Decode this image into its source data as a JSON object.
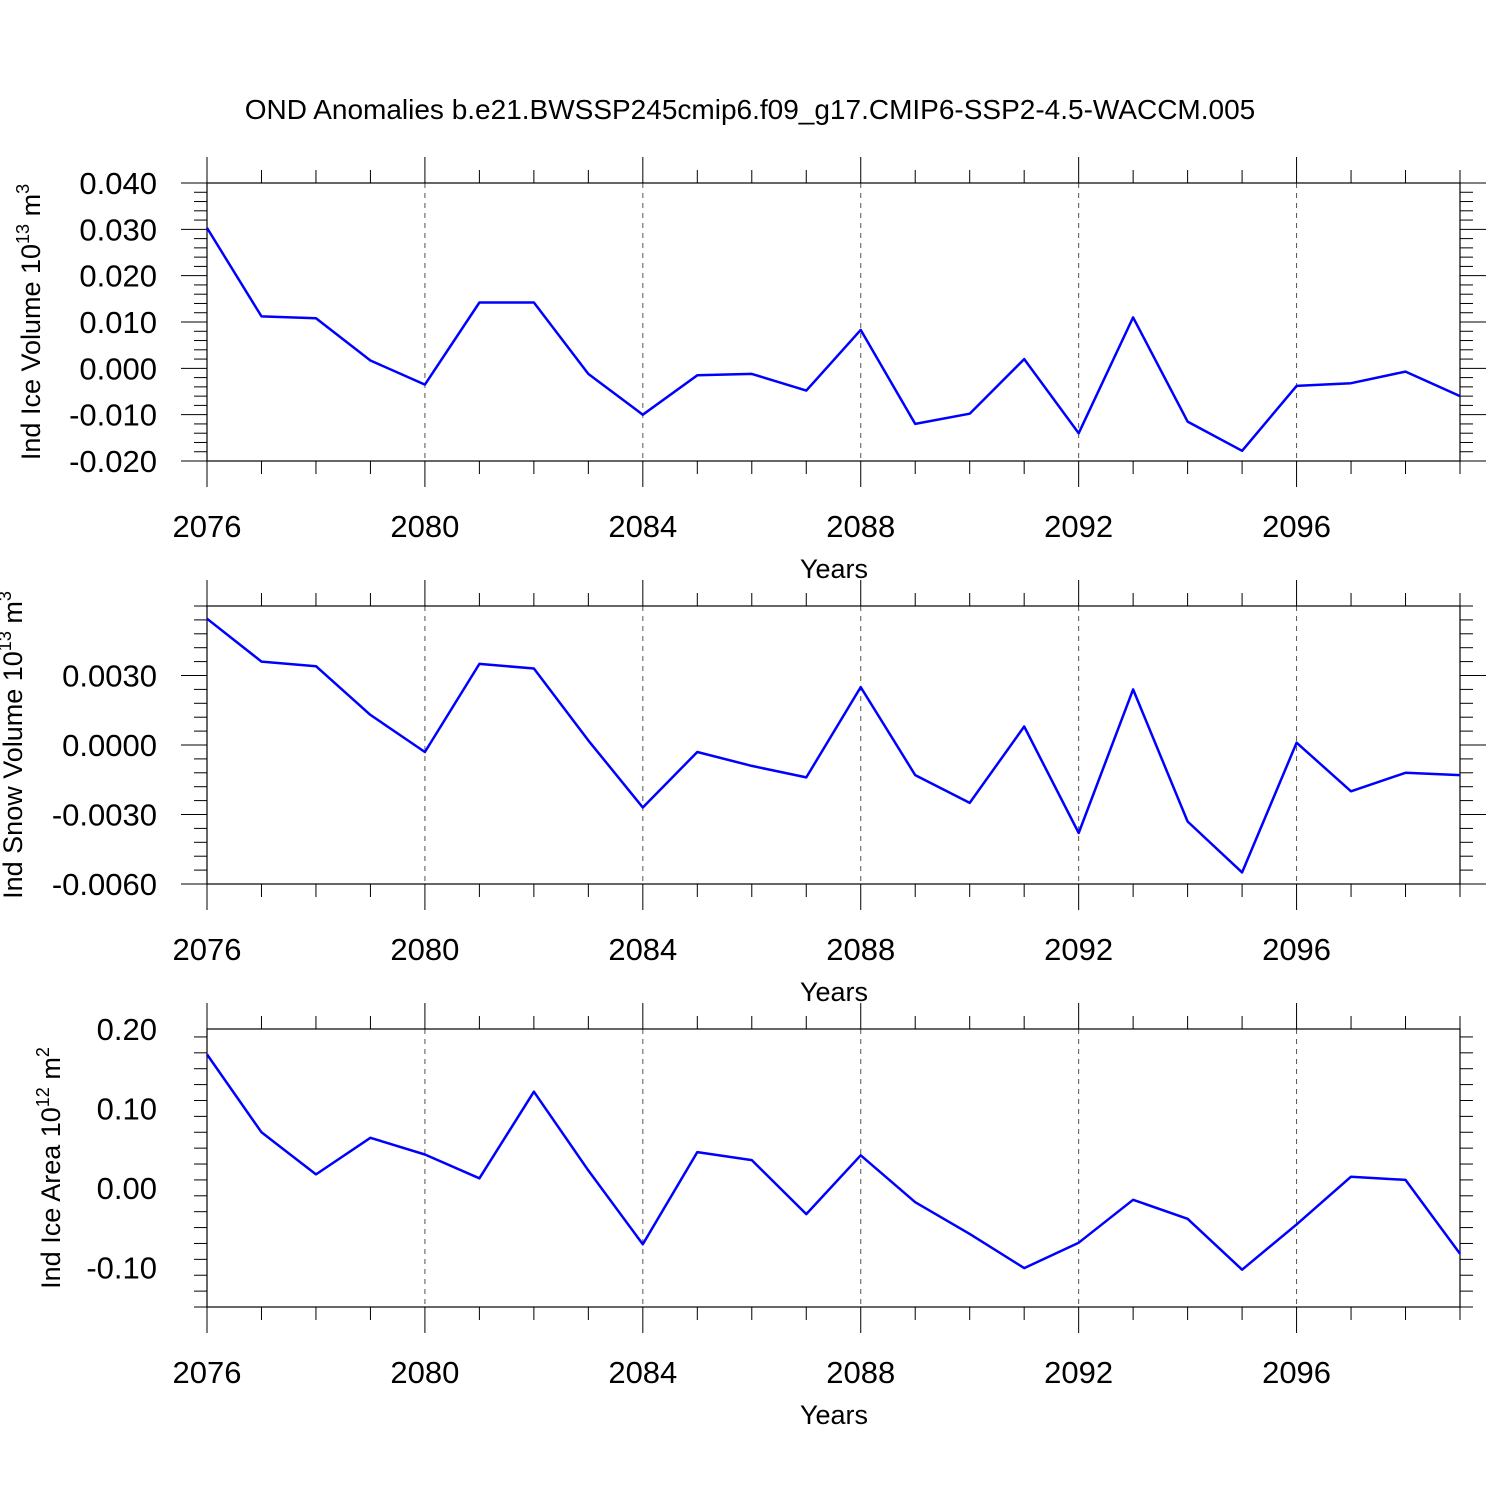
{
  "figure": {
    "title": "OND Anomalies b.e21.BWSSP245cmip6.f09_g17.CMIP6-SSP2-4.5-WACCM.005",
    "line_color": "#0000ff"
  },
  "chart_data": [
    {
      "type": "line",
      "ylabel": "Ind Ice Volume 10",
      "ylabel_exp": "13",
      "ylabel_unit": " m",
      "ylabel_unit_exp": "3",
      "xlabel": "Years",
      "xlim": [
        2076,
        2099
      ],
      "ylim": [
        -0.02,
        0.04
      ],
      "yticks": [
        -0.02,
        -0.01,
        0.0,
        0.01,
        0.02,
        0.03,
        0.04
      ],
      "ytick_labels": [
        "-0.020",
        "-0.010",
        "0.000",
        "0.010",
        "0.020",
        "0.030",
        "0.040"
      ],
      "xticks": [
        2076,
        2080,
        2084,
        2088,
        2092,
        2096
      ],
      "xtick_labels": [
        "2076",
        "2080",
        "2084",
        "2088",
        "2092",
        "2096"
      ],
      "grid": "vertical dashed at major x ticks",
      "series": [
        {
          "x": [
            2076,
            2077,
            2078,
            2079,
            2080,
            2081,
            2082,
            2083,
            2084,
            2085,
            2086,
            2087,
            2088,
            2089,
            2090,
            2091,
            2092,
            2093,
            2094,
            2095,
            2096,
            2097,
            2098,
            2099
          ],
          "values": [
            0.0303,
            0.0112,
            0.0108,
            0.0017,
            -0.0035,
            0.0142,
            0.0142,
            -0.0012,
            -0.01,
            -0.0015,
            -0.0012,
            -0.0048,
            0.0083,
            -0.012,
            -0.0098,
            0.002,
            -0.014,
            0.011,
            -0.0115,
            -0.0178,
            -0.0038,
            -0.0032,
            -0.0007,
            -0.006
          ]
        }
      ]
    },
    {
      "type": "line",
      "ylabel": "Ind Snow Volume 10",
      "ylabel_exp": "13",
      "ylabel_unit": " m",
      "ylabel_unit_exp": "3",
      "xlabel": "Years",
      "xlim": [
        2076,
        2099
      ],
      "ylim": [
        -0.006,
        0.006
      ],
      "yticks": [
        -0.006,
        -0.003,
        0.0,
        0.003
      ],
      "ytick_labels": [
        "-0.0060",
        "-0.0030",
        "0.0000",
        "0.0030"
      ],
      "xticks": [
        2076,
        2080,
        2084,
        2088,
        2092,
        2096
      ],
      "xtick_labels": [
        "2076",
        "2080",
        "2084",
        "2088",
        "2092",
        "2096"
      ],
      "grid": "vertical dashed at major x ticks",
      "series": [
        {
          "x": [
            2076,
            2077,
            2078,
            2079,
            2080,
            2081,
            2082,
            2083,
            2084,
            2085,
            2086,
            2087,
            2088,
            2089,
            2090,
            2091,
            2092,
            2093,
            2094,
            2095,
            2096,
            2097,
            2098,
            2099
          ],
          "values": [
            0.00545,
            0.0036,
            0.0034,
            0.0013,
            -0.0003,
            0.0035,
            0.0033,
            0.0002,
            -0.0027,
            -0.0003,
            -0.0009,
            -0.0014,
            0.0025,
            -0.0013,
            -0.0025,
            0.0008,
            -0.0038,
            0.0024,
            -0.0033,
            -0.0055,
            0.0001,
            -0.002,
            -0.0012,
            -0.0013
          ]
        }
      ]
    },
    {
      "type": "line",
      "ylabel": "Ind Ice Area 10",
      "ylabel_exp": "12",
      "ylabel_unit": " m",
      "ylabel_unit_exp": "2",
      "xlabel": "Years",
      "xlim": [
        2076,
        2099
      ],
      "ylim": [
        -0.15,
        0.2
      ],
      "yticks": [
        -0.1,
        0.0,
        0.1,
        0.2
      ],
      "ytick_labels": [
        "-0.10",
        "0.00",
        "0.10",
        "0.20"
      ],
      "xticks": [
        2076,
        2080,
        2084,
        2088,
        2092,
        2096
      ],
      "xtick_labels": [
        "2076",
        "2080",
        "2084",
        "2088",
        "2092",
        "2096"
      ],
      "grid": "vertical dashed at major x ticks",
      "series": [
        {
          "x": [
            2076,
            2077,
            2078,
            2079,
            2080,
            2081,
            2082,
            2083,
            2084,
            2085,
            2086,
            2087,
            2088,
            2089,
            2090,
            2091,
            2092,
            2093,
            2094,
            2095,
            2096,
            2097,
            2098,
            2099
          ],
          "values": [
            0.168,
            0.07,
            0.017,
            0.063,
            0.042,
            0.012,
            0.121,
            0.022,
            -0.071,
            0.045,
            0.035,
            -0.033,
            0.041,
            -0.018,
            -0.058,
            -0.101,
            -0.069,
            -0.015,
            -0.039,
            -0.103,
            -0.046,
            0.014,
            0.01,
            -0.083
          ]
        }
      ]
    }
  ]
}
